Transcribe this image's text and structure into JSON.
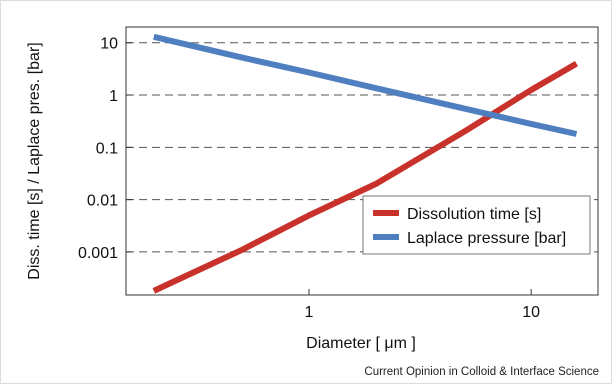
{
  "credit": "Current Opinion in Colloid & Interface Science",
  "chart_data": {
    "type": "line",
    "xlabel": "Diameter [ μm ]",
    "ylabel": "Diss. time [s] / Laplace pres. [bar]",
    "x_scale": "log",
    "y_scale": "log",
    "xlim": [
      0.15,
      20
    ],
    "ylim": [
      0.00015,
      20
    ],
    "x_ticks": [
      {
        "value": 1,
        "label": "1"
      },
      {
        "value": 10,
        "label": "10"
      }
    ],
    "y_ticks": [
      {
        "value": 10,
        "label": "10"
      },
      {
        "value": 1,
        "label": "1"
      },
      {
        "value": 0.1,
        "label": "0.1"
      },
      {
        "value": 0.01,
        "label": "0.01"
      },
      {
        "value": 0.001,
        "label": "0.001"
      }
    ],
    "grid": "horizontal dashed",
    "legend_position": "lower-right",
    "series": [
      {
        "name": "Dissolution time [s]",
        "color": "#c8322b",
        "x": [
          0.2,
          0.5,
          1,
          2,
          5,
          10,
          16
        ],
        "y": [
          0.00018,
          0.0011,
          0.005,
          0.02,
          0.2,
          1.25,
          4
        ]
      },
      {
        "name": "Laplace pressure [bar]",
        "color": "#4f7fc0",
        "x": [
          0.2,
          0.5,
          1,
          2,
          5,
          10,
          16
        ],
        "y": [
          13,
          5.2,
          2.7,
          1.35,
          0.55,
          0.28,
          0.18
        ]
      }
    ]
  }
}
